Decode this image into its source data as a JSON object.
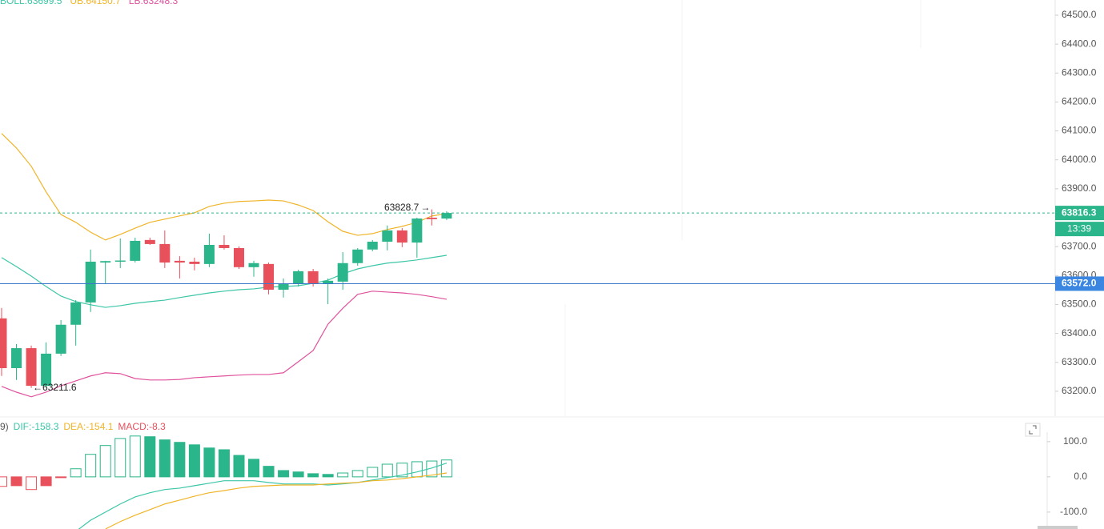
{
  "chart_data": [
    {
      "type": "candlestick",
      "ylim": [
        63114,
        64552.5
      ],
      "yticks": [
        {
          "value": 63200,
          "label": "63200.0"
        },
        {
          "value": 63300,
          "label": "63300.0"
        },
        {
          "value": 63400,
          "label": "63400.0"
        },
        {
          "value": 63500,
          "label": "63500.0"
        },
        {
          "value": 63600,
          "label": "63600.0"
        },
        {
          "value": 63700,
          "label": "63700.0"
        },
        {
          "value": 63800,
          "label": "63800.0"
        },
        {
          "value": 63900,
          "label": "63900.0"
        },
        {
          "value": 64000,
          "label": "64000.0"
        },
        {
          "value": 64100,
          "label": "64100.0"
        },
        {
          "value": 64200,
          "label": "64200.0"
        },
        {
          "value": 64300,
          "label": "64300.0"
        },
        {
          "value": 64400,
          "label": "64400.0"
        },
        {
          "value": 64500,
          "label": "64500.0"
        }
      ],
      "up_color": "#2bb58a",
      "down_color": "#e8505b",
      "open": [
        63452,
        63280,
        63349,
        63219,
        63330,
        63430,
        63507,
        63645,
        63648,
        63651,
        63723,
        63709,
        63651,
        63648,
        63640,
        63706,
        63695,
        63629,
        63640,
        63551,
        63571,
        63615,
        63571,
        63579,
        63643,
        63690,
        63717,
        63756,
        63714,
        63800,
        63797
      ],
      "high": [
        63488,
        63363,
        63358,
        63369,
        63446,
        63515,
        63690,
        63651,
        63728,
        63731,
        63731,
        63756,
        63667,
        63662,
        63745,
        63739,
        63701,
        63651,
        63645,
        63590,
        63620,
        63623,
        63590,
        63681,
        63695,
        63723,
        63773,
        63764,
        63800,
        63828.7,
        63822
      ],
      "low": [
        63253,
        63239,
        63211.6,
        63214,
        63322,
        63358,
        63474,
        63571,
        63626,
        63645,
        63706,
        63626,
        63590,
        63618,
        63629,
        63690,
        63623,
        63596,
        63535,
        63524,
        63562,
        63562,
        63501,
        63551,
        63634,
        63684,
        63687,
        63698,
        63662,
        63773,
        63792
      ],
      "close": [
        63280,
        63349,
        63219,
        63330,
        63430,
        63507,
        63648,
        63650,
        63652,
        63720,
        63709,
        63645,
        63645,
        63640,
        63706,
        63695,
        63629,
        63643,
        63551,
        63571,
        63615,
        63573,
        63582,
        63643,
        63690,
        63717,
        63756,
        63714,
        63797,
        63795,
        63816.3
      ],
      "bands": [
        {
          "name": "BOLL:63699.5",
          "color": "#3cc6a8",
          "values": [
            63662,
            63631,
            63598,
            63562,
            63529,
            63510,
            63499,
            63490,
            63496,
            63504,
            63510,
            63515,
            63524,
            63532,
            63540,
            63546,
            63551,
            63554,
            63560,
            63562,
            63565,
            63573,
            63584,
            63606,
            63623,
            63634,
            63643,
            63648,
            63654,
            63662,
            63670
          ]
        },
        {
          "name": "UB:64150.7",
          "color": "#f0b429",
          "values": [
            64091,
            64041,
            63978,
            63889,
            63811,
            63784,
            63750,
            63723,
            63742,
            63764,
            63784,
            63795,
            63806,
            63817,
            63839,
            63850,
            63856,
            63858,
            63861,
            63858,
            63844,
            63825,
            63786,
            63753,
            63739,
            63745,
            63759,
            63770,
            63784,
            63806,
            63814
          ]
        },
        {
          "name": "LB:63248.3",
          "color": "#e0529c",
          "values": [
            63217,
            63197,
            63181,
            63197,
            63219,
            63236,
            63253,
            63264,
            63261,
            63244,
            63239,
            63239,
            63241,
            63247,
            63250,
            63253,
            63256,
            63258,
            63258,
            63264,
            63302,
            63341,
            63432,
            63487,
            63535,
            63546,
            63543,
            63540,
            63535,
            63527,
            63518
          ]
        }
      ],
      "price_line": {
        "value": 63572,
        "label": "63572.0"
      },
      "countdown": "13:39"
    },
    {
      "type": "macd",
      "params_label": "9)",
      "ylim": [
        -148,
        161
      ],
      "yticks": [
        {
          "value": -100,
          "label": "-100.0"
        },
        {
          "value": 0,
          "label": "0.0"
        },
        {
          "value": 100,
          "label": "100.0"
        }
      ],
      "histogram": {
        "name": "MACD:-8.3",
        "up_color": "#2bb58a",
        "down_color": "#e8505b",
        "values": [
          -27,
          -25,
          -36,
          -25,
          -2,
          23,
          64,
          89,
          109,
          116,
          114,
          105,
          98,
          91,
          82,
          77,
          61,
          50,
          30,
          18,
          14,
          9,
          7,
          11,
          18,
          27,
          36,
          39,
          43,
          45,
          48
        ]
      },
      "series": [
        {
          "name": "DIF:-158.3",
          "color": "#3cc6a8",
          "values": [
            null,
            null,
            null,
            null,
            null,
            -155,
            -123,
            -100,
            -77,
            -57,
            -45,
            -36,
            -32,
            -25,
            -18,
            -11,
            -11,
            -11,
            -16,
            -20,
            -20,
            -20,
            -23,
            -20,
            -16,
            -9,
            -2,
            5,
            14,
            25,
            39
          ]
        },
        {
          "name": "DEA:-154.1",
          "color": "#f0b429",
          "values": [
            null,
            null,
            null,
            null,
            null,
            null,
            null,
            -148,
            -127,
            -109,
            -93,
            -77,
            -66,
            -55,
            -45,
            -39,
            -32,
            -27,
            -25,
            -23,
            -23,
            -23,
            -20,
            -18,
            -16,
            -11,
            -9,
            -5,
            0,
            5,
            11
          ]
        }
      ]
    }
  ]
}
